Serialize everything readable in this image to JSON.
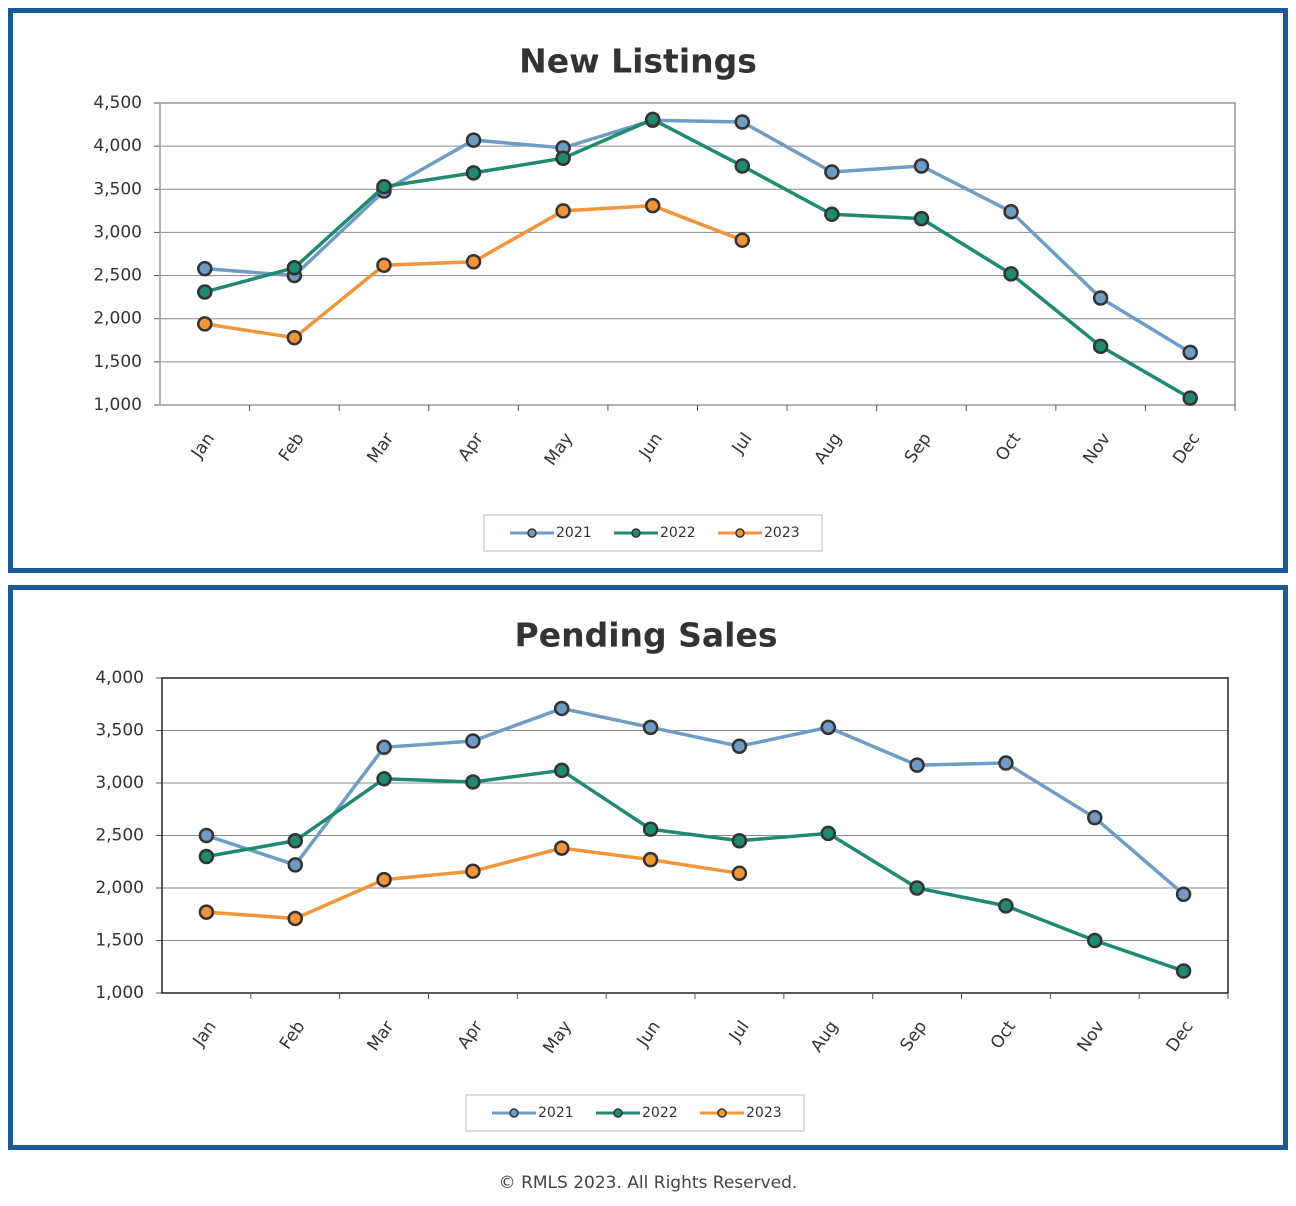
{
  "chart_data": [
    {
      "type": "line",
      "title": "New Listings",
      "categories": [
        "Jan",
        "Feb",
        "Mar",
        "Apr",
        "May",
        "Jun",
        "Jul",
        "Aug",
        "Sep",
        "Oct",
        "Nov",
        "Dec"
      ],
      "series": [
        {
          "name": "2021",
          "color": "#6f9cc4",
          "values": [
            2580,
            2500,
            3480,
            4070,
            3980,
            4300,
            4280,
            3700,
            3770,
            3240,
            2240,
            1610
          ]
        },
        {
          "name": "2022",
          "color": "#1f8a6e",
          "values": [
            2310,
            2590,
            3530,
            3690,
            3860,
            4310,
            3770,
            3210,
            3160,
            2520,
            1680,
            1080
          ]
        },
        {
          "name": "2023",
          "color": "#f0953a",
          "values": [
            1940,
            1780,
            2620,
            2660,
            3250,
            3310,
            2910,
            null,
            null,
            null,
            null,
            null
          ]
        }
      ],
      "ylim": [
        1000,
        4500
      ],
      "yticks": [
        {
          "value": 1000,
          "label": "1,000"
        },
        {
          "value": 1500,
          "label": "1,500"
        },
        {
          "value": 2000,
          "label": "2,000"
        },
        {
          "value": 2500,
          "label": "2,500"
        },
        {
          "value": 3000,
          "label": "3,000"
        },
        {
          "value": 3500,
          "label": "3,500"
        },
        {
          "value": 4000,
          "label": "4,000"
        },
        {
          "value": 4500,
          "label": "4,500"
        }
      ],
      "grid": true,
      "legend": "bottom"
    },
    {
      "type": "line",
      "title": "Pending Sales",
      "categories": [
        "Jan",
        "Feb",
        "Mar",
        "Apr",
        "May",
        "Jun",
        "Jul",
        "Aug",
        "Sep",
        "Oct",
        "Nov",
        "Dec"
      ],
      "series": [
        {
          "name": "2021",
          "color": "#6f9cc4",
          "values": [
            2500,
            2220,
            3340,
            3400,
            3710,
            3530,
            3350,
            3530,
            3170,
            3190,
            2670,
            1940
          ]
        },
        {
          "name": "2022",
          "color": "#1f8a6e",
          "values": [
            2300,
            2450,
            3040,
            3010,
            3120,
            2560,
            2450,
            2520,
            2000,
            1830,
            1500,
            1210
          ]
        },
        {
          "name": "2023",
          "color": "#f0953a",
          "values": [
            1770,
            1710,
            2080,
            2160,
            2380,
            2270,
            2140,
            null,
            null,
            null,
            null,
            null
          ]
        }
      ],
      "ylim": [
        1000,
        4000
      ],
      "yticks": [
        {
          "value": 1000,
          "label": "1,000"
        },
        {
          "value": 1500,
          "label": "1,500"
        },
        {
          "value": 2000,
          "label": "2,000"
        },
        {
          "value": 2500,
          "label": "2,500"
        },
        {
          "value": 3000,
          "label": "3,000"
        },
        {
          "value": 3500,
          "label": "3,500"
        },
        {
          "value": 4000,
          "label": "4,000"
        }
      ],
      "grid": true,
      "legend": "bottom"
    }
  ],
  "footer": "© RMLS 2023. All Rights Reserved."
}
